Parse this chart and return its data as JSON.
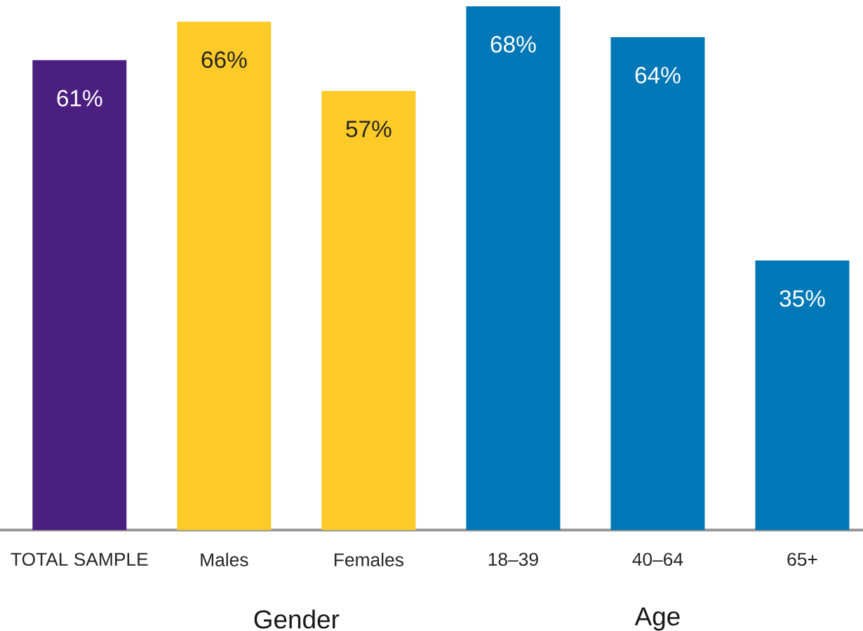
{
  "chart_data": {
    "type": "bar",
    "categories": [
      "TOTAL SAMPLE",
      "Males",
      "Females",
      "18–39",
      "40–64",
      "65+"
    ],
    "values": [
      61,
      66,
      57,
      68,
      64,
      35
    ],
    "colors": [
      "#4b1f7f",
      "#fdca27",
      "#fdca27",
      "#0077b6",
      "#0077b6",
      "#0077b6"
    ],
    "value_labels": [
      "61%",
      "66%",
      "57%",
      "68%",
      "64%",
      "35%"
    ],
    "annotations": [
      "Gender",
      "Age"
    ]
  }
}
